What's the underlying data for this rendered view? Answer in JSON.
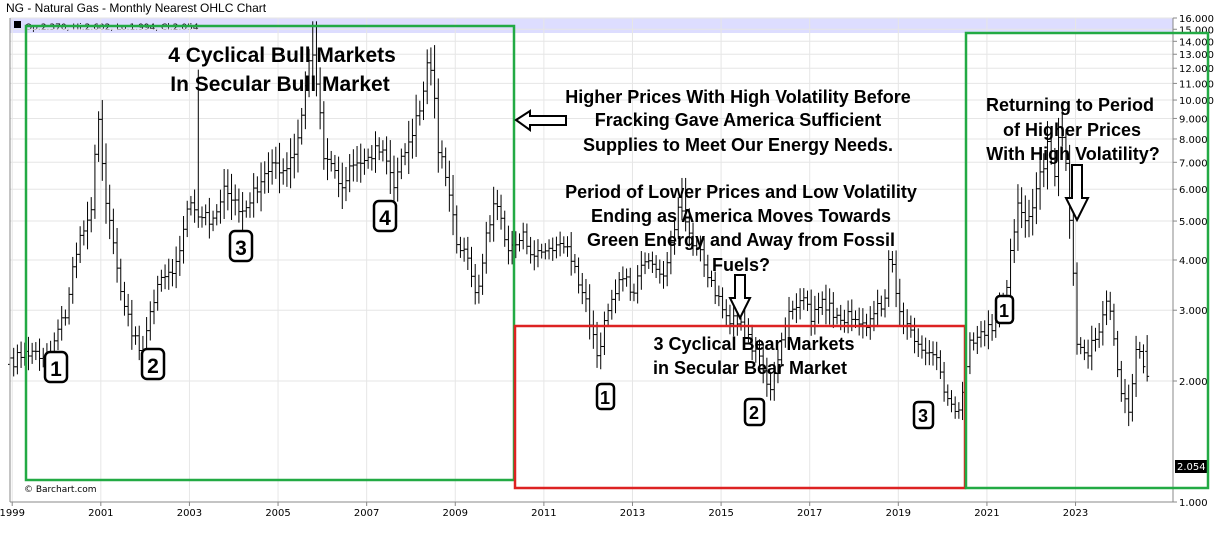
{
  "chart_data": {
    "type": "ohlc",
    "title": "NG - Natural Gas - Monthly Nearest OHLC Chart",
    "ohlc_readout": "Op:2.370, Hi:2.602, Lo:1.994, Cl:2.054",
    "last_price": "2.054",
    "credit": "© Barchart.com",
    "ylim": [
      1.0,
      16.0
    ],
    "y_scale": "log",
    "xlim": [
      1998.95,
      2025.2
    ],
    "y_ticks": [
      "1.000",
      "2.000",
      "3.000",
      "4.000",
      "5.000",
      "6.000",
      "7.000",
      "8.000",
      "9.000",
      "10.000",
      "11.000",
      "12.000",
      "13.000",
      "14.000",
      "15.000",
      "16.000"
    ],
    "x_ticks": [
      "1999",
      "2001",
      "2003",
      "2005",
      "2007",
      "2009",
      "2011",
      "2013",
      "2015",
      "2017",
      "2019",
      "2021",
      "2023"
    ],
    "anchors": [
      [
        1999.0,
        2.2
      ],
      [
        1999.5,
        2.4
      ],
      [
        1999.9,
        2.3
      ],
      [
        2000.3,
        3.0
      ],
      [
        2000.6,
        4.4
      ],
      [
        2000.9,
        5.5
      ],
      [
        2001.0,
        9.5
      ],
      [
        2001.2,
        5.4
      ],
      [
        2001.5,
        3.5
      ],
      [
        2001.8,
        2.6
      ],
      [
        2002.0,
        2.3
      ],
      [
        2002.3,
        3.3
      ],
      [
        2002.7,
        3.8
      ],
      [
        2002.9,
        4.5
      ],
      [
        2003.1,
        5.6
      ],
      [
        2003.3,
        5.3
      ],
      [
        2003.6,
        5.0
      ],
      [
        2003.9,
        6.0
      ],
      [
        2004.2,
        5.4
      ],
      [
        2004.6,
        5.9
      ],
      [
        2004.9,
        7.0
      ],
      [
        2005.2,
        6.5
      ],
      [
        2005.5,
        7.5
      ],
      [
        2005.7,
        10.5
      ],
      [
        2005.83,
        13.5
      ],
      [
        2005.95,
        11.0
      ],
      [
        2006.1,
        7.5
      ],
      [
        2006.4,
        6.5
      ],
      [
        2006.6,
        6.0
      ],
      [
        2006.8,
        7.2
      ],
      [
        2007.1,
        7.0
      ],
      [
        2007.4,
        7.8
      ],
      [
        2007.7,
        6.3
      ],
      [
        2007.9,
        7.2
      ],
      [
        2008.3,
        9.5
      ],
      [
        2008.5,
        13.1
      ],
      [
        2008.7,
        7.5
      ],
      [
        2008.9,
        6.5
      ],
      [
        2009.1,
        4.5
      ],
      [
        2009.4,
        3.9
      ],
      [
        2009.6,
        3.2
      ],
      [
        2009.8,
        4.8
      ],
      [
        2010.0,
        5.6
      ],
      [
        2010.3,
        4.2
      ],
      [
        2010.6,
        4.6
      ],
      [
        2010.9,
        4.1
      ],
      [
        2011.2,
        4.3
      ],
      [
        2011.5,
        4.4
      ],
      [
        2011.8,
        3.8
      ],
      [
        2012.1,
        2.9
      ],
      [
        2012.3,
        2.2
      ],
      [
        2012.5,
        2.9
      ],
      [
        2012.8,
        3.6
      ],
      [
        2013.1,
        3.4
      ],
      [
        2013.4,
        4.2
      ],
      [
        2013.8,
        3.7
      ],
      [
        2014.0,
        4.5
      ],
      [
        2014.1,
        5.5
      ],
      [
        2014.4,
        4.6
      ],
      [
        2014.7,
        4.0
      ],
      [
        2014.9,
        3.4
      ],
      [
        2015.2,
        2.8
      ],
      [
        2015.5,
        2.8
      ],
      [
        2015.8,
        2.4
      ],
      [
        2016.0,
        2.2
      ],
      [
        2016.2,
        1.9
      ],
      [
        2016.5,
        2.7
      ],
      [
        2016.9,
        3.3
      ],
      [
        2017.1,
        2.9
      ],
      [
        2017.4,
        3.1
      ],
      [
        2017.7,
        2.9
      ],
      [
        2017.9,
        2.9
      ],
      [
        2018.2,
        2.7
      ],
      [
        2018.5,
        2.9
      ],
      [
        2018.8,
        3.2
      ],
      [
        2018.9,
        4.3
      ],
      [
        2019.1,
        2.9
      ],
      [
        2019.4,
        2.6
      ],
      [
        2019.7,
        2.3
      ],
      [
        2019.9,
        2.3
      ],
      [
        2020.1,
        1.9
      ],
      [
        2020.4,
        1.7
      ],
      [
        2020.5,
        1.8
      ],
      [
        2020.7,
        2.5
      ],
      [
        2020.9,
        2.7
      ],
      [
        2021.2,
        2.7
      ],
      [
        2021.5,
        3.3
      ],
      [
        2021.8,
        5.6
      ],
      [
        2022.0,
        4.8
      ],
      [
        2022.3,
        6.5
      ],
      [
        2022.5,
        8.0
      ],
      [
        2022.6,
        6.0
      ],
      [
        2022.75,
        9.0
      ],
      [
        2022.9,
        6.2
      ],
      [
        2023.0,
        4.2
      ],
      [
        2023.1,
        2.5
      ],
      [
        2023.3,
        2.3
      ],
      [
        2023.6,
        2.7
      ],
      [
        2023.8,
        3.2
      ],
      [
        2023.95,
        2.6
      ],
      [
        2024.1,
        1.9
      ],
      [
        2024.3,
        1.7
      ],
      [
        2024.5,
        2.6
      ],
      [
        2024.6,
        2.1
      ]
    ],
    "spikes": [
      [
        2001.0,
        10.0
      ],
      [
        2003.2,
        11.9
      ],
      [
        2005.83,
        15.7
      ],
      [
        2008.5,
        13.7
      ],
      [
        2014.15,
        6.4
      ],
      [
        2022.7,
        9.9
      ]
    ],
    "color_theme": {
      "bars": "#000000",
      "band": "#ddddff",
      "bull_box": "#22aa44",
      "bear_box": "#dd2222"
    },
    "annotations": {
      "bull_title_1": "4 Cyclical Bull Markets",
      "bull_title_2": "In Secular Bull Market",
      "high_vol_1": "Higher Prices With High Volatility Before",
      "high_vol_2": "Fracking Gave America Sufficient",
      "high_vol_3": "Supplies to Meet Our Energy Needs.",
      "low_vol_1": "Period of Lower Prices and Low Volatility",
      "low_vol_2": "Ending as America Moves Towards",
      "low_vol_3": "Green Energy and Away from Fossil",
      "low_vol_4": "Fuels?",
      "bear_title_1": "3 Cyclical Bear Markets",
      "bear_title_2": "in Secular Bear Market",
      "returning_1": "Returning to Period",
      "returning_2": "of Higher Prices",
      "returning_3": "With High Volatility?",
      "bull_nums": [
        "1",
        "2",
        "3",
        "4"
      ],
      "bear_nums": [
        "1",
        "2",
        "3"
      ],
      "new_nums": [
        "1"
      ]
    }
  }
}
